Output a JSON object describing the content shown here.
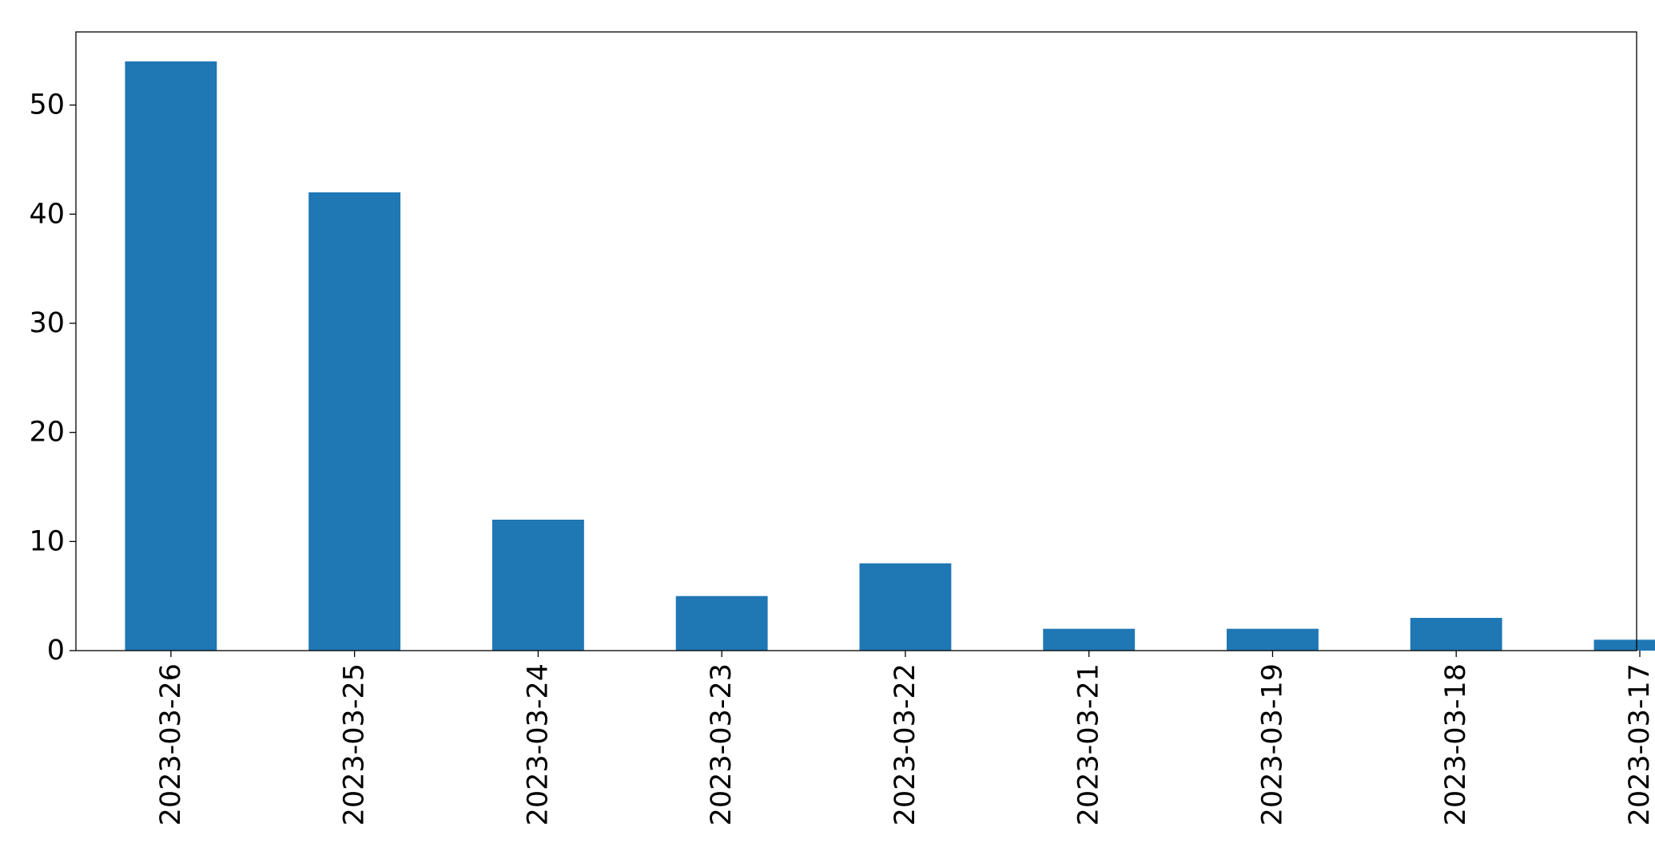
{
  "chart_data": {
    "type": "bar",
    "categories": [
      "2023-03-26",
      "2023-03-25",
      "2023-03-24",
      "2023-03-23",
      "2023-03-22",
      "2023-03-21",
      "2023-03-19",
      "2023-03-18",
      "2023-03-17"
    ],
    "values": [
      54,
      42,
      12,
      5,
      8,
      2,
      2,
      3,
      1
    ],
    "title": "",
    "xlabel": "",
    "ylabel": "",
    "ylim": [
      0,
      56.7
    ],
    "yticks": [
      0,
      10,
      20,
      30,
      40,
      50
    ],
    "grid": false,
    "bar_color": "#1f77b4"
  }
}
